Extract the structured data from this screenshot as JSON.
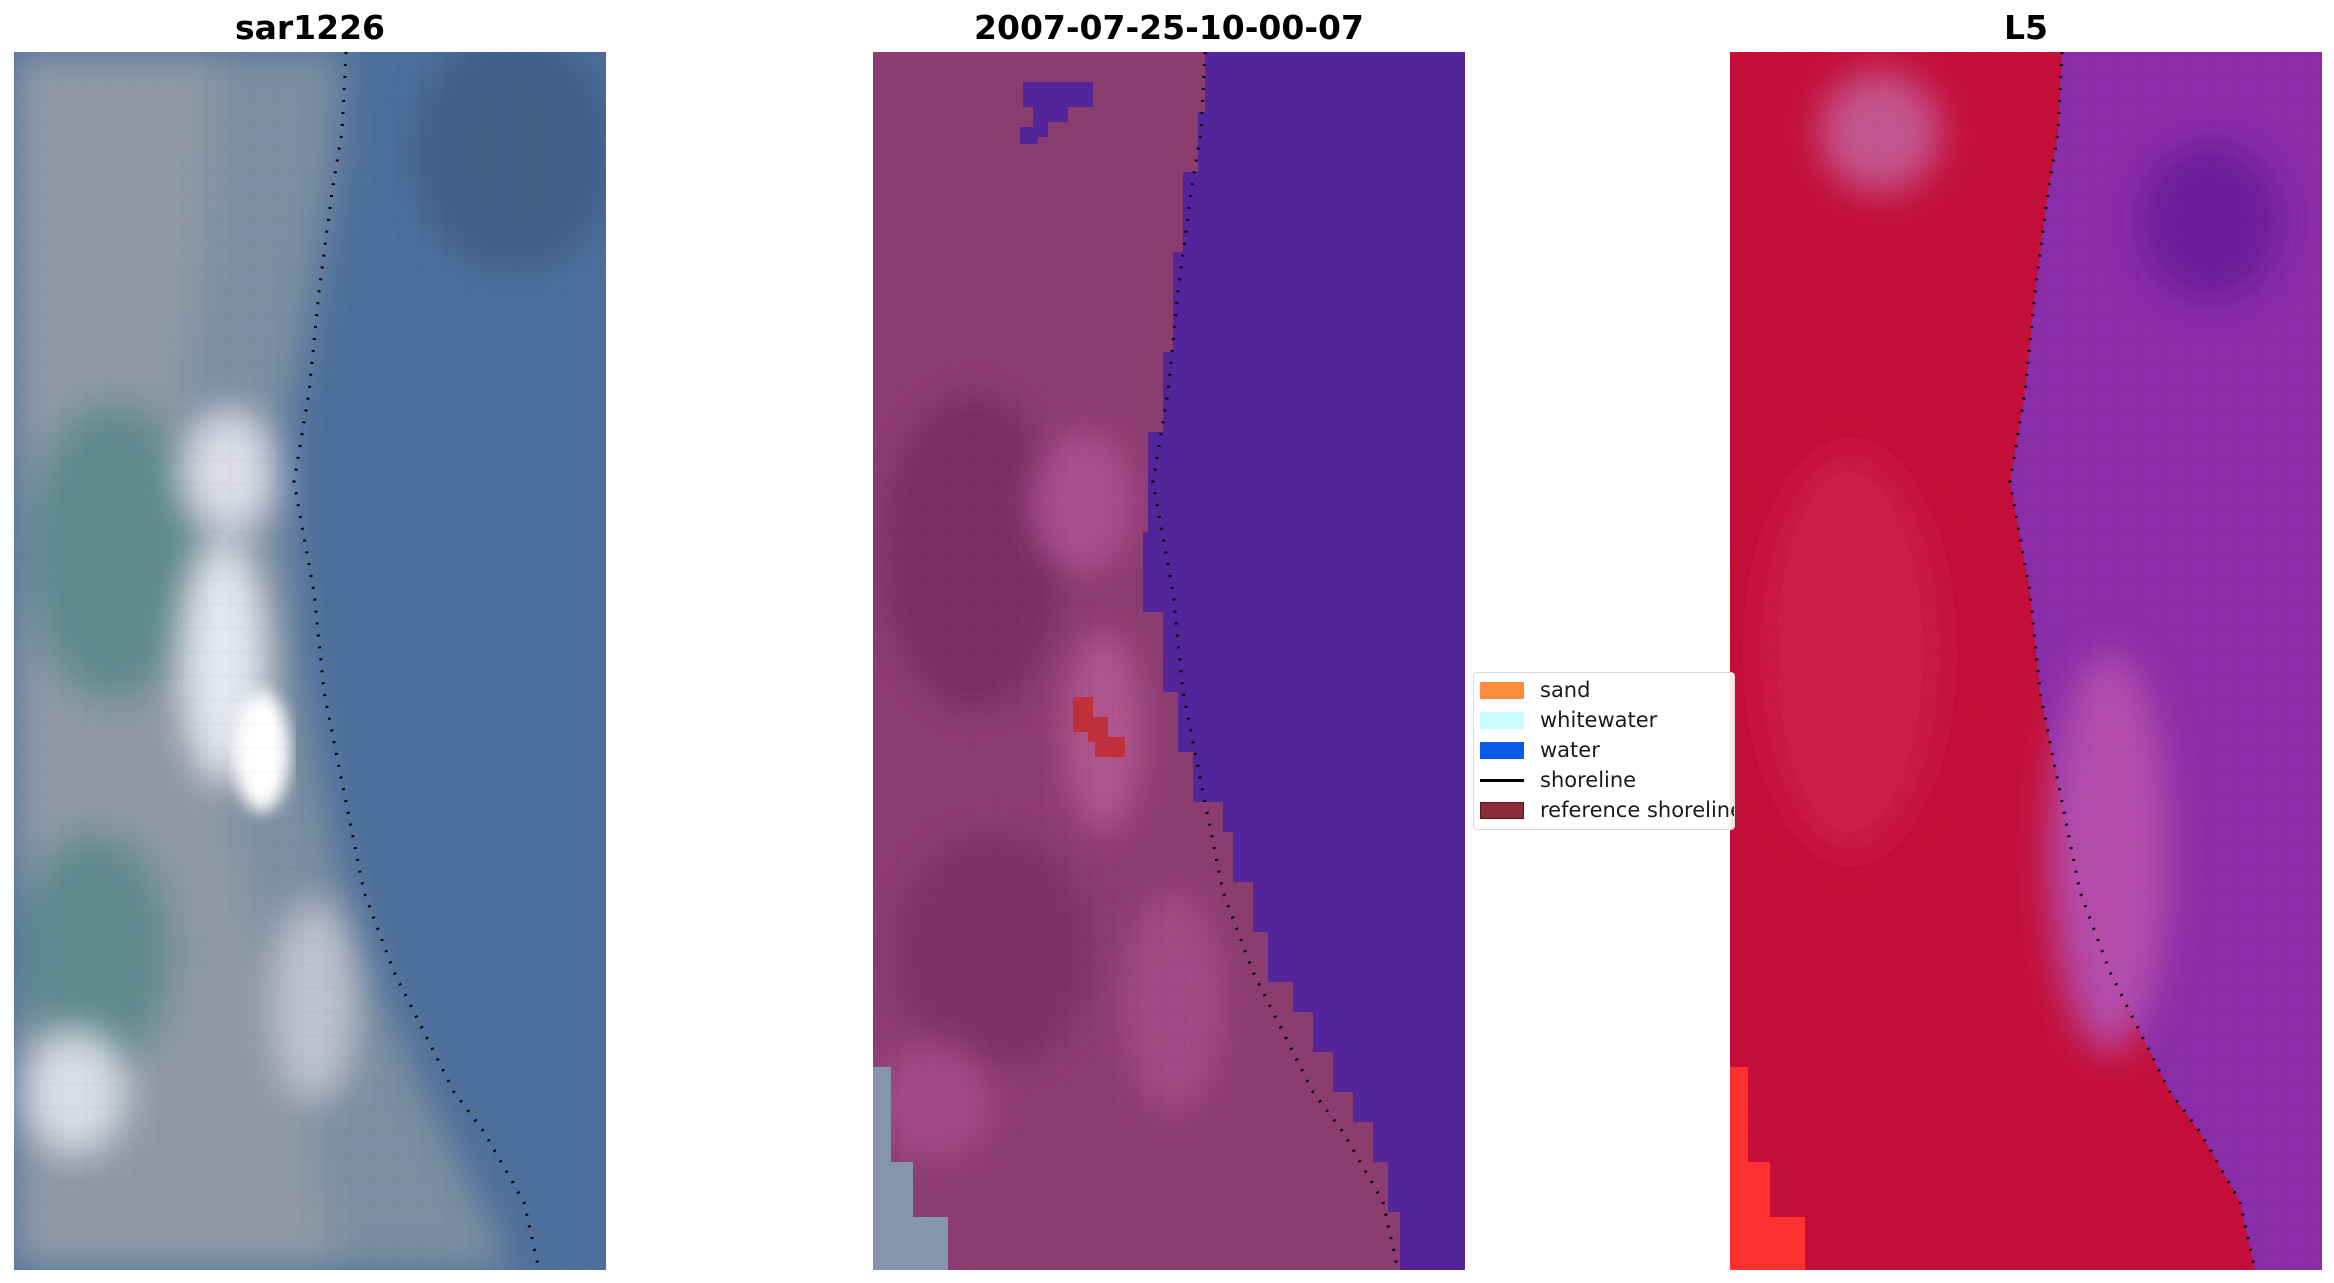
{
  "panels": [
    {
      "title": "sar1226",
      "kind": "rgb"
    },
    {
      "title": "2007-07-25-10-00-07",
      "kind": "classified"
    },
    {
      "title": "L5",
      "kind": "index"
    }
  ],
  "legend": {
    "items": [
      {
        "label": "sand",
        "color": "#ff8c3c",
        "type": "patch"
      },
      {
        "label": "whitewater",
        "color": "#c8fcff",
        "type": "patch"
      },
      {
        "label": "water",
        "color": "#0a5ae8",
        "type": "patch"
      },
      {
        "label": "shoreline",
        "color": "#000000",
        "type": "line"
      },
      {
        "label": "reference shoreline",
        "color": "#8b2b35",
        "type": "patch"
      }
    ]
  },
  "colors": {
    "rgb_water": "#4d6f9c",
    "classified_land": "#8c3d70",
    "classified_water": "#54249a",
    "classified_sand_patch": "#c0303a",
    "index_land": "#c40f3a",
    "index_water": "#8a2da8",
    "shoreline": "#000000"
  }
}
